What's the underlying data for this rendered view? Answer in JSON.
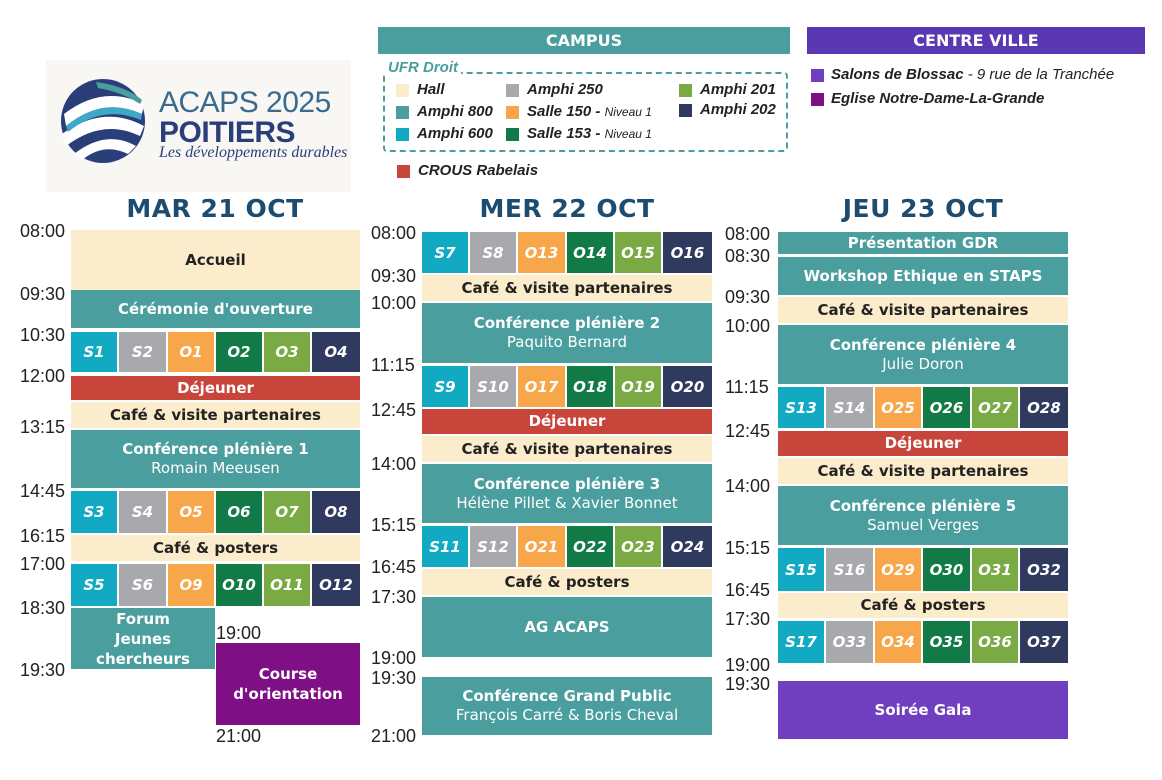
{
  "logo": {
    "main": "ACAPS 2025",
    "city": "POITIERS",
    "tagline": "Les développements durables"
  },
  "legend": {
    "campus_title": "CAMPUS",
    "centre_title": "CENTRE VILLE",
    "ufr_label": "UFR Droit",
    "col1": [
      {
        "label": "Hall",
        "color": "#fbeccb"
      },
      {
        "label": "Amphi 800",
        "color": "#4a9e9e"
      },
      {
        "label": "Amphi 600",
        "color": "#12aac3"
      }
    ],
    "col2": [
      {
        "label": "Amphi 250",
        "color": "#a8a9ad"
      },
      {
        "label": "Salle 150 - ",
        "note": "Niveau 1",
        "color": "#f7a649"
      },
      {
        "label": "Salle 153 - ",
        "note": "Niveau 1",
        "color": "#127a47"
      }
    ],
    "col3": [
      {
        "label": "Amphi 201",
        "color": "#7aaa43"
      },
      {
        "label": "Amphi 202",
        "color": "#303a5e"
      }
    ],
    "crous": {
      "label": "CROUS Rabelais",
      "color": "#c8453b"
    },
    "centre": [
      {
        "label": "Salons de Blossac",
        "addr": " - 9 rue de la Tranchée",
        "color": "#6f3fc0"
      },
      {
        "label": "Eglise Notre-Dame-La-Grande",
        "color": "#7e0f84"
      }
    ]
  },
  "days": {
    "d1": {
      "title": "MAR 21 OCT",
      "times": [
        "08:00",
        "09:30",
        "10:30",
        "12:00",
        "13:15",
        "14:45",
        "16:15",
        "17:00",
        "18:30",
        "19:30",
        "19:00",
        "21:00"
      ],
      "accueil": "Accueil",
      "ceremonie": "Cérémonie d'ouverture",
      "dejeuner": "Déjeuner",
      "cafe1": "Café & visite partenaires",
      "pleniere_title": "Conférence plénière 1",
      "pleniere_speaker": "Romain Meeusen",
      "cafe2": "Café & posters",
      "forum1": "Forum",
      "forum2": "Jeunes",
      "forum3": "chercheurs",
      "course1": "Course",
      "course2": "d'orientation",
      "row1": [
        "S1",
        "S2",
        "O1",
        "O2",
        "O3",
        "O4"
      ],
      "row2": [
        "S3",
        "S4",
        "O5",
        "O6",
        "O7",
        "O8"
      ],
      "row3": [
        "S5",
        "S6",
        "O9",
        "O10",
        "O11",
        "O12"
      ]
    },
    "d2": {
      "title": "MER 22 OCT",
      "times": [
        "08:00",
        "09:30",
        "10:00",
        "11:15",
        "12:45",
        "14:00",
        "15:15",
        "16:45",
        "17:30",
        "19:00",
        "19:30",
        "21:00"
      ],
      "cafe1": "Café & visite partenaires",
      "pleniere2_title": "Conférence plénière 2",
      "pleniere2_speaker": "Paquito Bernard",
      "dejeuner": "Déjeuner",
      "cafe2": "Café & visite partenaires",
      "pleniere3_title": "Conférence plénière 3",
      "pleniere3_speaker": "Hélène Pillet & Xavier Bonnet",
      "cafe3": "Café & posters",
      "ag": "AG ACAPS",
      "grand_public_title": "Conférence Grand Public",
      "grand_public_speaker": "François Carré & Boris Cheval",
      "row1": [
        "S7",
        "S8",
        "O13",
        "O14",
        "O15",
        "O16"
      ],
      "row2": [
        "S9",
        "S10",
        "O17",
        "O18",
        "O19",
        "O20"
      ],
      "row3": [
        "S11",
        "S12",
        "O21",
        "O22",
        "O23",
        "O24"
      ]
    },
    "d3": {
      "title": "JEU 23 OCT",
      "times": [
        "08:00",
        "08:30",
        "09:30",
        "10:00",
        "11:15",
        "12:45",
        "14:00",
        "15:15",
        "16:45",
        "17:30",
        "19:00",
        "19:30"
      ],
      "gdr": "Présentation GDR",
      "workshop": "Workshop Ethique en STAPS",
      "cafe1": "Café & visite partenaires",
      "pleniere4_title": "Conférence plénière 4",
      "pleniere4_speaker": "Julie Doron",
      "dejeuner": "Déjeuner",
      "cafe2": "Café & visite partenaires",
      "pleniere5_title": "Conférence plénière 5",
      "pleniere5_speaker": "Samuel Verges",
      "cafe3": "Café & posters",
      "gala": "Soirée Gala",
      "row1": [
        "S13",
        "S14",
        "O25",
        "O26",
        "O27",
        "O28"
      ],
      "row2": [
        "S15",
        "S16",
        "O29",
        "O30",
        "O31",
        "O32"
      ],
      "row3": [
        "S17",
        "O33",
        "O34",
        "O35",
        "O36",
        "O37"
      ]
    }
  },
  "colors": {
    "hall": "#fbeccb",
    "amphi800": "#4a9e9e",
    "amphi600": "#12aac3",
    "amphi250": "#a8a9ad",
    "salle150": "#f7a649",
    "salle153": "#127a47",
    "amphi201": "#7aaa43",
    "amphi202": "#303a5e",
    "crous": "#c8453b",
    "blossac": "#6f3fc0",
    "eglise": "#7e0f84",
    "title": "#1c4c70"
  }
}
